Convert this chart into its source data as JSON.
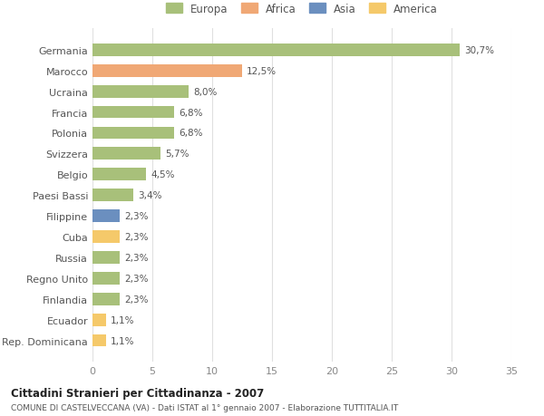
{
  "categories": [
    "Germania",
    "Marocco",
    "Ucraina",
    "Francia",
    "Polonia",
    "Svizzera",
    "Belgio",
    "Paesi Bassi",
    "Filippine",
    "Cuba",
    "Russia",
    "Regno Unito",
    "Finlandia",
    "Ecuador",
    "Rep. Dominicana"
  ],
  "values": [
    30.7,
    12.5,
    8.0,
    6.8,
    6.8,
    5.7,
    4.5,
    3.4,
    2.3,
    2.3,
    2.3,
    2.3,
    2.3,
    1.1,
    1.1
  ],
  "labels": [
    "30,7%",
    "12,5%",
    "8,0%",
    "6,8%",
    "6,8%",
    "5,7%",
    "4,5%",
    "3,4%",
    "2,3%",
    "2,3%",
    "2,3%",
    "2,3%",
    "2,3%",
    "1,1%",
    "1,1%"
  ],
  "colors": [
    "#a8c07a",
    "#f0a875",
    "#a8c07a",
    "#a8c07a",
    "#a8c07a",
    "#a8c07a",
    "#a8c07a",
    "#a8c07a",
    "#6b8fbf",
    "#f5c96a",
    "#a8c07a",
    "#a8c07a",
    "#a8c07a",
    "#f5c96a",
    "#f5c96a"
  ],
  "legend_labels": [
    "Europa",
    "Africa",
    "Asia",
    "America"
  ],
  "legend_colors": [
    "#a8c07a",
    "#f0a875",
    "#6b8fbf",
    "#f5c96a"
  ],
  "title": "Cittadini Stranieri per Cittadinanza - 2007",
  "subtitle": "COMUNE DI CASTELVECCANA (VA) - Dati ISTAT al 1° gennaio 2007 - Elaborazione TUTTITALIA.IT",
  "xlim": [
    0,
    35
  ],
  "xticks": [
    0,
    5,
    10,
    15,
    20,
    25,
    30,
    35
  ],
  "bg_color": "#ffffff",
  "grid_color": "#e0e0e0",
  "bar_height": 0.6
}
